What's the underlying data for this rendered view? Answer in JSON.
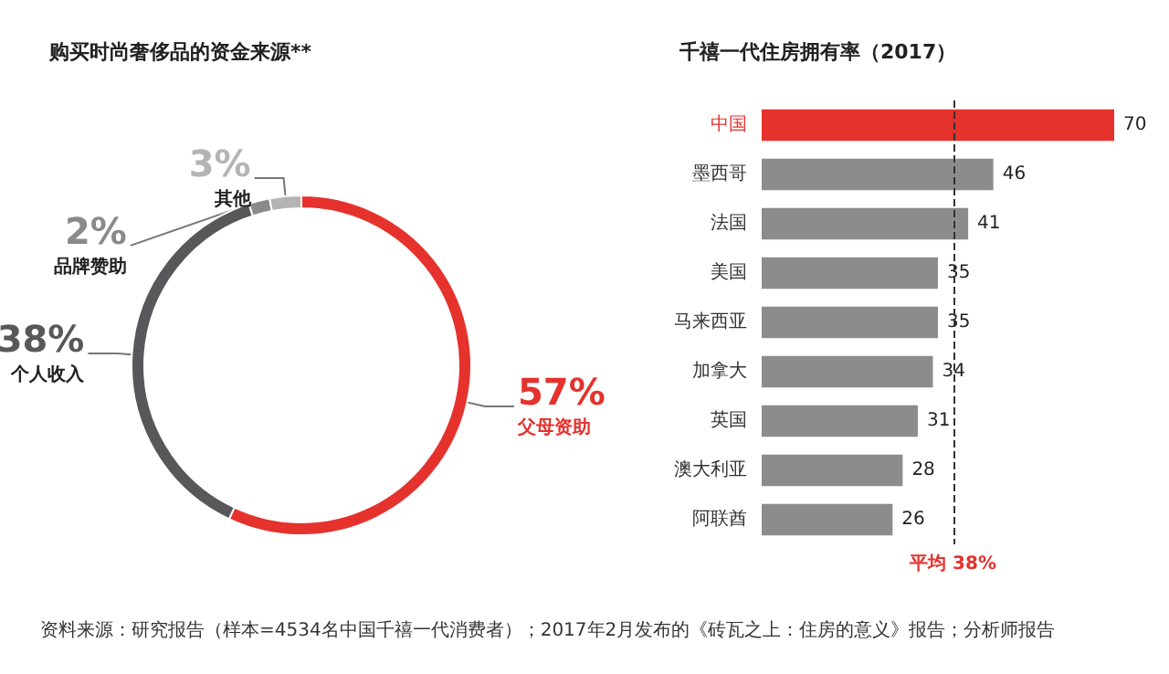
{
  "chart_data": [
    {
      "type": "donut",
      "title": "购买时尚奢侈品的资金来源**",
      "categories": [
        "父母资助",
        "个人收入",
        "品牌赞助",
        "其他"
      ],
      "values": [
        57,
        38,
        2,
        3
      ],
      "value_labels": [
        "57%",
        "38%",
        "2%",
        "3%"
      ],
      "colors": [
        "#e5322d",
        "#58585a",
        "#8a8a8a",
        "#b4b4b4"
      ],
      "legend": false,
      "annotations": [
        "资料来源：研究报告（样本=4534名中国千禧一代消费者）；2017年2月发布的《砖瓦之上：住房的意义》报告；分析师报告"
      ]
    },
    {
      "type": "bar",
      "title": "千禧一代住房拥有率（2017）",
      "orientation": "horizontal",
      "categories": [
        "中国",
        "墨西哥",
        "法国",
        "美国",
        "马来西亚",
        "加拿大",
        "英国",
        "澳大利亚",
        "阿联酋"
      ],
      "values": [
        70,
        46,
        41,
        35,
        35,
        34,
        31,
        28,
        26
      ],
      "color": "#8c8c8c",
      "colors": [
        "#e5322d",
        "#8c8c8c",
        "#8c8c8c",
        "#8c8c8c",
        "#8c8c8c",
        "#8c8c8c",
        "#8c8c8c",
        "#8c8c8c",
        "#8c8c8c"
      ],
      "data_labels": true,
      "grid": false,
      "legend": false,
      "ref_lines": [
        {
          "axis": "x",
          "value": 38,
          "label": "平均 38%",
          "color": "#333333",
          "line_style": "dashed"
        }
      ]
    }
  ]
}
